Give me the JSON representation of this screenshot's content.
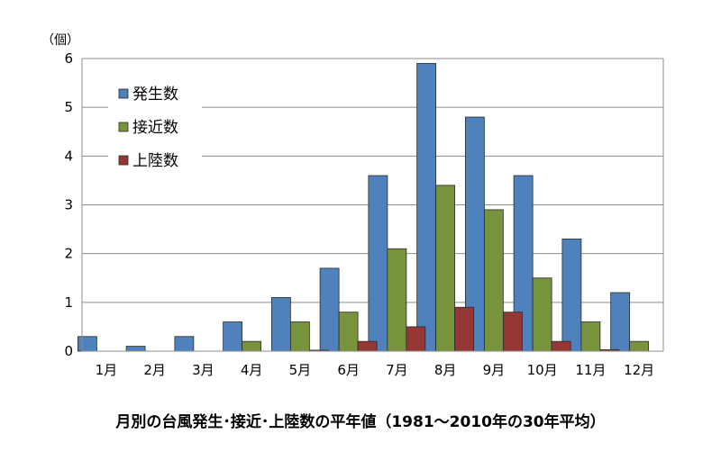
{
  "chart_data": {
    "type": "bar",
    "title": "月別の台風発生･接近･上陸数の平年値（1981～2010年の30年平均）",
    "y_unit": "（個）",
    "categories": [
      "1月",
      "2月",
      "3月",
      "4月",
      "5月",
      "6月",
      "7月",
      "8月",
      "9月",
      "10月",
      "11月",
      "12月"
    ],
    "ylim": [
      0,
      6
    ],
    "yticks": [
      0,
      1,
      2,
      3,
      4,
      5,
      6
    ],
    "grid": true,
    "legend_position": "top-left",
    "series": [
      {
        "name": "発生数",
        "color": "#4f81bd",
        "values": [
          0.3,
          0.1,
          0.3,
          0.6,
          1.1,
          1.7,
          3.6,
          5.9,
          4.8,
          3.6,
          2.3,
          1.2
        ]
      },
      {
        "name": "接近数",
        "color": "#77933c",
        "values": [
          0,
          0,
          0,
          0.2,
          0.6,
          0.8,
          2.1,
          3.4,
          2.9,
          1.5,
          0.6,
          0.2
        ]
      },
      {
        "name": "上陸数",
        "color": "#953735",
        "values": [
          0,
          0,
          0,
          0,
          0.02,
          0.2,
          0.5,
          0.9,
          0.8,
          0.2,
          0.03,
          0
        ]
      }
    ]
  }
}
